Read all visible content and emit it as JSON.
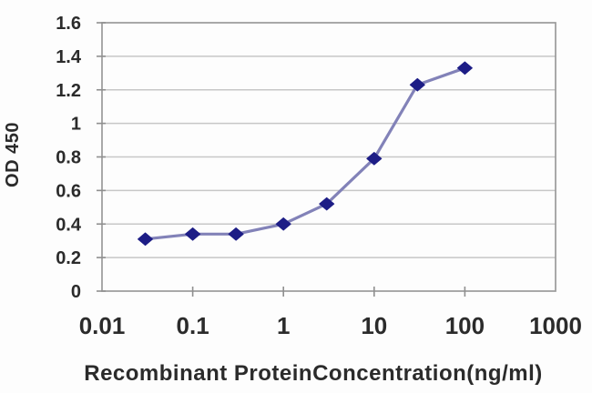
{
  "figure": {
    "background_color": "#fdfdfd"
  },
  "chart_data": {
    "type": "line",
    "title": "",
    "xlabel": "Recombinant ProteinConcentration(ng/ml)",
    "ylabel": "OD 450",
    "x_scale": "log",
    "xlim": [
      0.01,
      1000
    ],
    "ylim": [
      0,
      1.6
    ],
    "x": [
      0.03,
      0.1,
      0.3,
      1,
      3,
      10,
      30,
      100
    ],
    "y": [
      0.31,
      0.34,
      0.34,
      0.4,
      0.52,
      0.79,
      1.23,
      1.33
    ],
    "x_tick_labels": [
      "0.01",
      "0.1",
      "1",
      "10",
      "100",
      "1000"
    ],
    "x_tick_values": [
      0.01,
      0.1,
      1,
      10,
      100,
      1000
    ],
    "y_tick_labels": [
      "0",
      "0.2",
      "0.4",
      "0.6",
      "0.8",
      "1",
      "1.2",
      "1.4",
      "1.6"
    ],
    "y_tick_values": [
      0,
      0.2,
      0.4,
      0.6,
      0.8,
      1,
      1.2,
      1.4,
      1.6
    ],
    "grid": "horizontal-only",
    "legend": "none",
    "marker": "diamond",
    "colors": {
      "line": "#8282b8",
      "marker": "#1d1d86",
      "gridline": "#c7c7c7",
      "frame": "#9a9a9a",
      "tick": "#8f8f8f",
      "text": "#2b2b2b"
    }
  }
}
